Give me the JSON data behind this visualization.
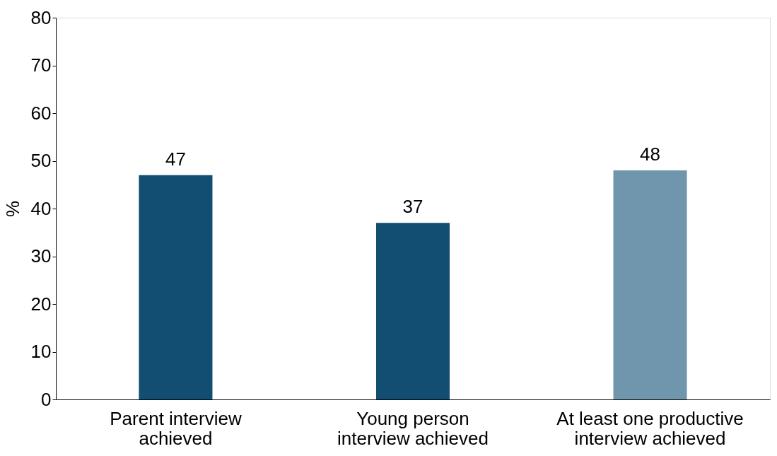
{
  "chart_data": {
    "type": "bar",
    "ylabel": "%",
    "categories": [
      "Parent interview achieved",
      "Young person interview achieved",
      "At least one productive interview achieved"
    ],
    "values": [
      47,
      37,
      48
    ],
    "colors": [
      "#124e72",
      "#124e72",
      "#7096ae"
    ],
    "ylim": [
      0,
      80
    ],
    "yticks": [
      0,
      10,
      20,
      30,
      40,
      50,
      60,
      70,
      80
    ],
    "data_labels": true,
    "grid": false
  }
}
